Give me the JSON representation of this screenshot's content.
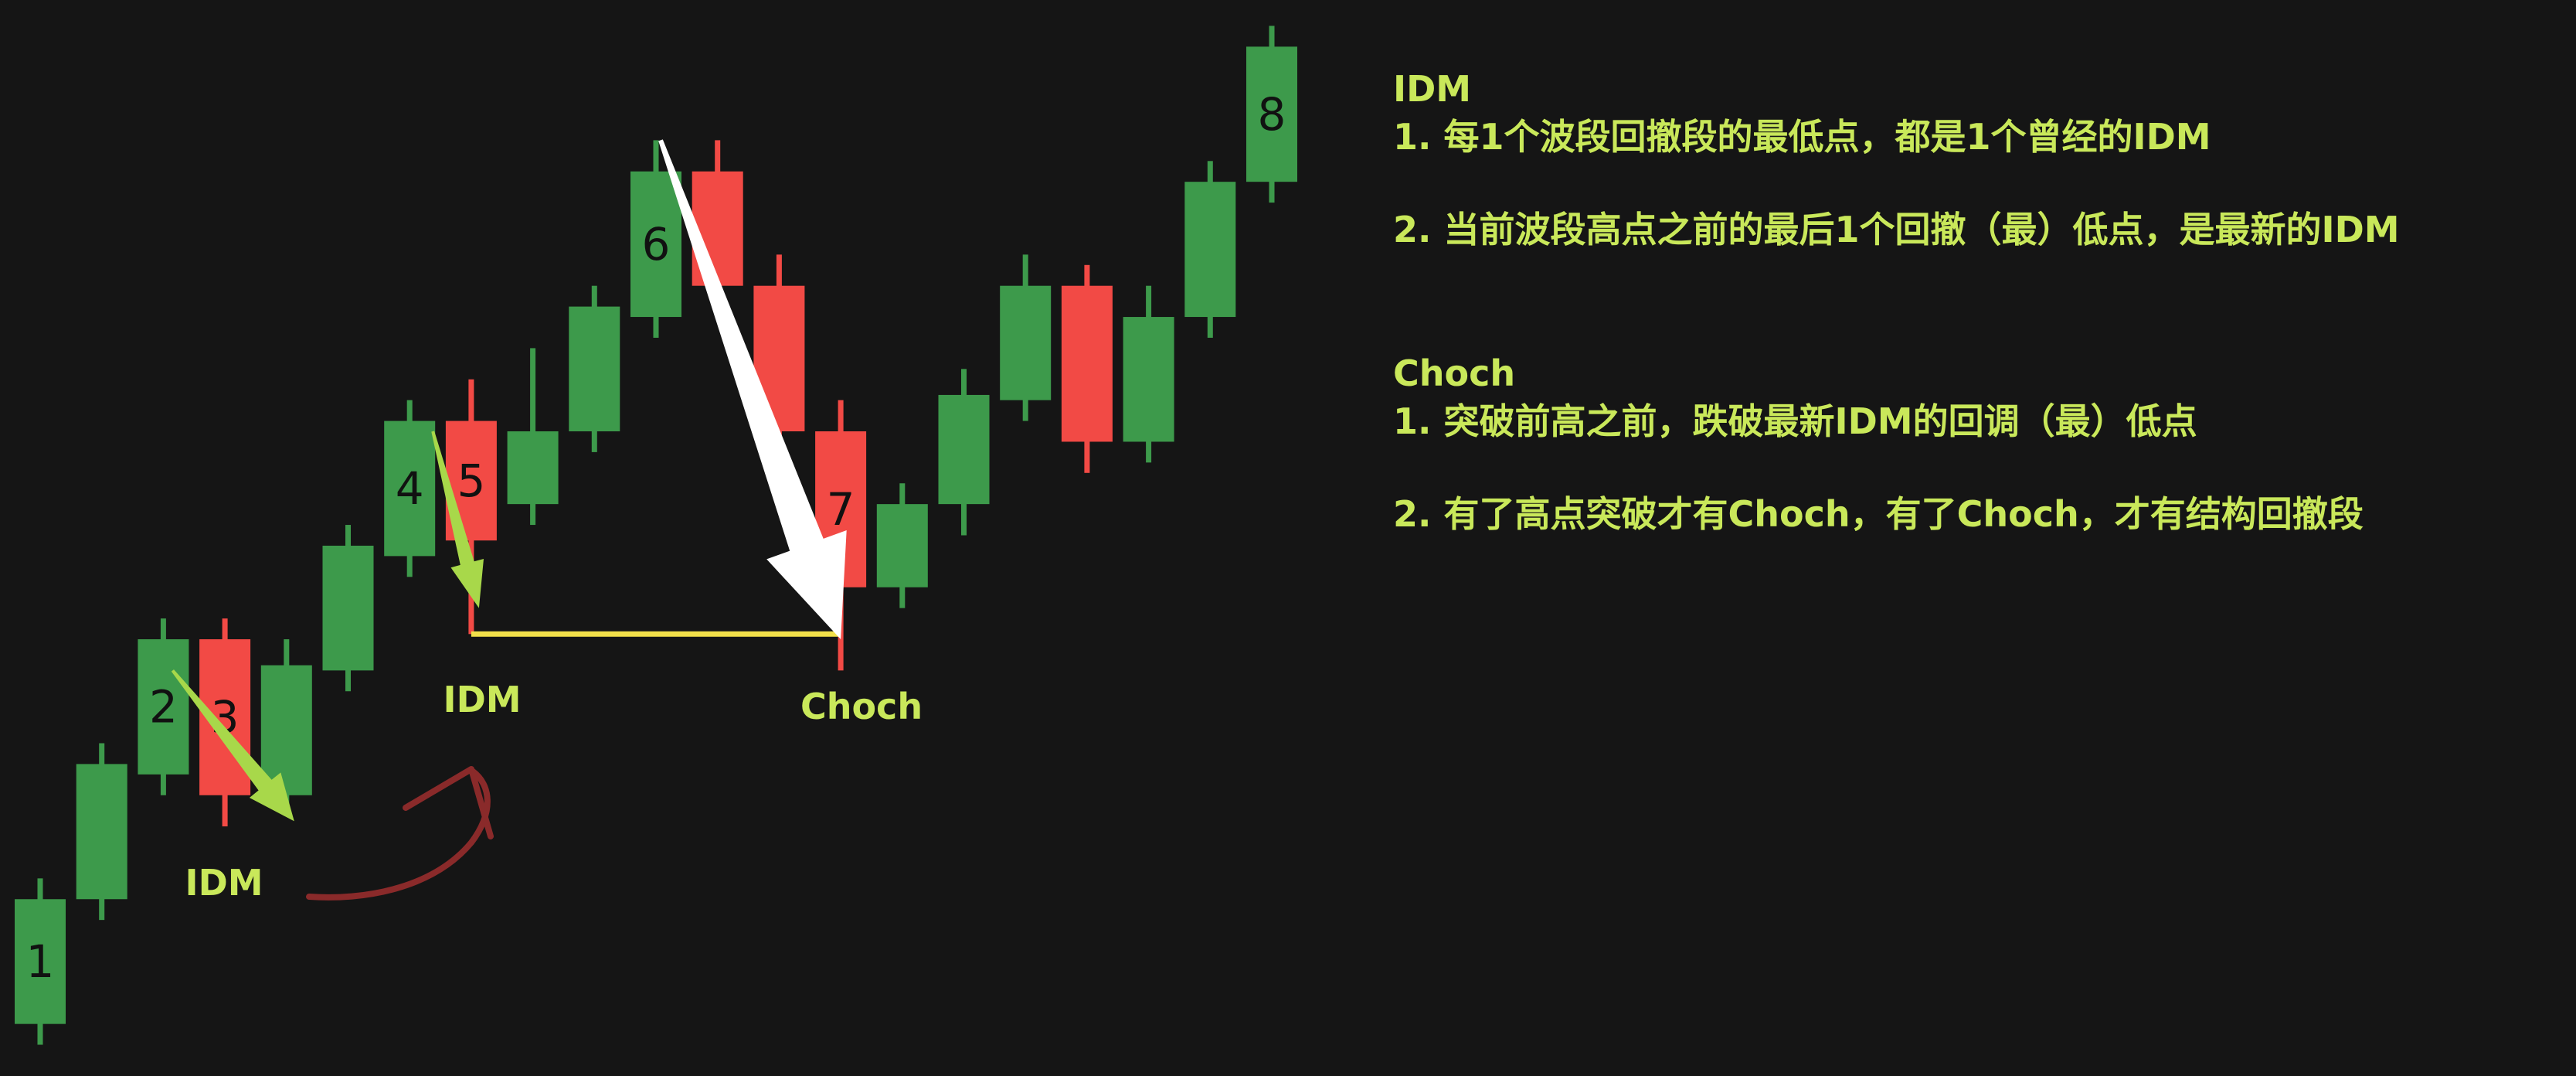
{
  "colors": {
    "background": "#151515",
    "bull": "#3d9a4b",
    "bear": "#f24a45",
    "text_accent": "#c9e85a",
    "level_line": "#f2e04a",
    "arrow_white": "#ffffff",
    "arrow_green": "#a8d84a",
    "arrow_curve": "#8a2a2a"
  },
  "chart_data": {
    "type": "candlestick",
    "title": "",
    "xlabel": "",
    "ylabel": "",
    "ylim": [
      0,
      100
    ],
    "grid": false,
    "candles": [
      {
        "label": "1",
        "direction": "bull",
        "open": 3,
        "close": 15,
        "high": 17,
        "low": 1
      },
      {
        "label": "",
        "direction": "bull",
        "open": 15,
        "close": 28,
        "high": 30,
        "low": 13
      },
      {
        "label": "2",
        "direction": "bull",
        "open": 27,
        "close": 40,
        "high": 42,
        "low": 25
      },
      {
        "label": "3",
        "direction": "bear",
        "open": 40,
        "close": 25,
        "high": 42,
        "low": 22
      },
      {
        "label": "",
        "direction": "bull",
        "open": 25,
        "close": 37.5,
        "high": 40,
        "low": 23
      },
      {
        "label": "",
        "direction": "bull",
        "open": 37,
        "close": 49,
        "high": 51,
        "low": 35
      },
      {
        "label": "4",
        "direction": "bull",
        "open": 48,
        "close": 61,
        "high": 63,
        "low": 46
      },
      {
        "label": "5",
        "direction": "bear",
        "open": 61,
        "close": 49.5,
        "high": 65,
        "low": 40.5
      },
      {
        "label": "",
        "direction": "bull",
        "open": 53,
        "close": 60,
        "high": 68,
        "low": 51
      },
      {
        "label": "",
        "direction": "bull",
        "open": 60,
        "close": 72,
        "high": 74,
        "low": 58
      },
      {
        "label": "6",
        "direction": "bull",
        "open": 71,
        "close": 85,
        "high": 88,
        "low": 69
      },
      {
        "label": "",
        "direction": "bear",
        "open": 85,
        "close": 74,
        "high": 88,
        "low": 73
      },
      {
        "label": "",
        "direction": "bear",
        "open": 74,
        "close": 60,
        "high": 77,
        "low": 58
      },
      {
        "label": "7",
        "direction": "bear",
        "open": 60,
        "close": 45,
        "high": 63,
        "low": 37
      },
      {
        "label": "",
        "direction": "bull",
        "open": 45,
        "close": 53,
        "high": 55,
        "low": 43
      },
      {
        "label": "",
        "direction": "bull",
        "open": 53,
        "close": 63.5,
        "high": 66,
        "low": 50
      },
      {
        "label": "",
        "direction": "bull",
        "open": 63,
        "close": 74,
        "high": 77,
        "low": 61
      },
      {
        "label": "",
        "direction": "bear",
        "open": 74,
        "close": 59,
        "high": 76,
        "low": 56
      },
      {
        "label": "",
        "direction": "bull",
        "open": 59,
        "close": 71,
        "high": 74,
        "low": 57
      },
      {
        "label": "",
        "direction": "bull",
        "open": 71,
        "close": 84,
        "high": 86,
        "low": 69
      },
      {
        "label": "8",
        "direction": "bull",
        "open": 84,
        "close": 97,
        "high": 99,
        "low": 82
      }
    ],
    "annotations": [
      {
        "text": "IDM",
        "near_candle": 4
      },
      {
        "text": "IDM",
        "near_candle": 7
      },
      {
        "text": "Choch",
        "near_candle": 13
      }
    ],
    "level_line": {
      "value": 40.5,
      "from_candle": 7,
      "to_candle": 13
    }
  },
  "notes": {
    "idm_heading": "IDM",
    "idm_line1": "1. 每1个波段回撤段的最低点，都是1个曾经的IDM",
    "idm_line2": "2. 当前波段高点之前的最后1个回撤（最）低点，是最新的IDM",
    "choch_heading": "Choch",
    "choch_line1": "1. 突破前高之前，跌破最新IDM的回调（最）低点",
    "choch_line2": "2. 有了高点突破才有Choch，有了Choch，才有结构回撤段"
  }
}
